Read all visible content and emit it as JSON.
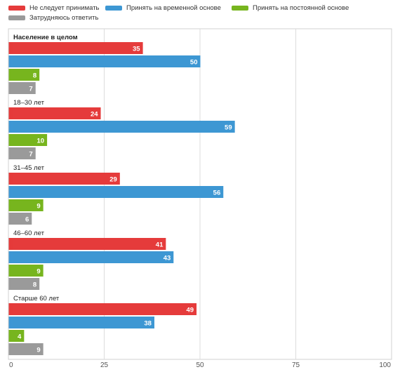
{
  "chart_data": {
    "type": "bar",
    "orientation": "horizontal",
    "title": "",
    "xlabel": "",
    "ylabel": "",
    "xlim": [
      0,
      100
    ],
    "xticks": [
      0,
      25,
      50,
      75,
      100
    ],
    "grid": true,
    "legend_position": "top",
    "categories": [
      "Население в целом",
      "18–30 лет",
      "31–45 лет",
      "46–60 лет",
      "Старше 60 лет"
    ],
    "series": [
      {
        "name": "Не следует принимать",
        "color": "#e53b3b",
        "values": [
          35,
          24,
          29,
          41,
          49
        ]
      },
      {
        "name": "Принять на временной основе",
        "color": "#3d97d3",
        "values": [
          50,
          59,
          56,
          43,
          38
        ]
      },
      {
        "name": "Принять на постоянной основе",
        "color": "#77b51e",
        "values": [
          8,
          10,
          9,
          9,
          4
        ]
      },
      {
        "name": "Затрудняюсь ответить",
        "color": "#9a9a9a",
        "values": [
          7,
          7,
          6,
          8,
          9
        ]
      }
    ]
  }
}
